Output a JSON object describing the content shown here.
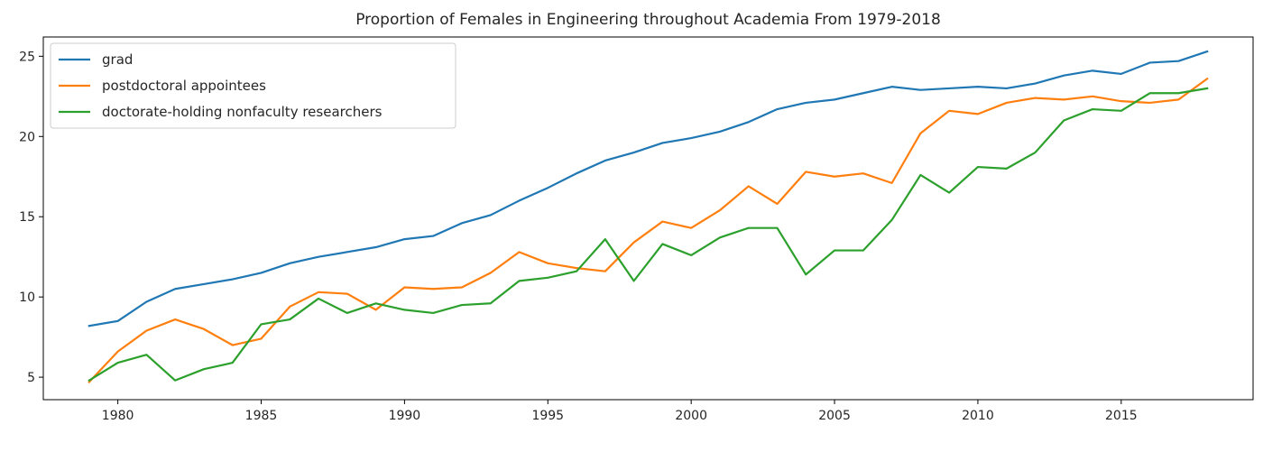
{
  "chart_data": {
    "type": "line",
    "title": "Proportion of Females in Engineering throughout Academia From 1979-2018",
    "xlabel": "",
    "ylabel": "",
    "xlim": [
      1977.4,
      2019.6
    ],
    "ylim": [
      3.6,
      26.2
    ],
    "xticks": [
      1980,
      1985,
      1990,
      1995,
      2000,
      2005,
      2010,
      2015
    ],
    "yticks": [
      5,
      10,
      15,
      20,
      25
    ],
    "grid": false,
    "legend_position": "top-left",
    "x": [
      1979,
      1980,
      1981,
      1982,
      1983,
      1984,
      1985,
      1986,
      1987,
      1988,
      1989,
      1990,
      1991,
      1992,
      1993,
      1994,
      1995,
      1996,
      1997,
      1998,
      1999,
      2000,
      2001,
      2002,
      2003,
      2004,
      2005,
      2006,
      2007,
      2008,
      2009,
      2010,
      2011,
      2012,
      2013,
      2014,
      2015,
      2016,
      2017,
      2018
    ],
    "series": [
      {
        "name": "grad",
        "color": "#1f77b4",
        "values": [
          8.2,
          8.5,
          9.7,
          10.5,
          10.8,
          11.1,
          11.5,
          12.1,
          12.5,
          12.8,
          13.1,
          13.6,
          13.8,
          14.6,
          15.1,
          16.0,
          16.8,
          17.7,
          18.5,
          19.0,
          19.6,
          19.9,
          20.3,
          20.9,
          21.7,
          22.1,
          22.3,
          22.7,
          23.1,
          22.9,
          23.0,
          23.1,
          23.0,
          23.3,
          23.8,
          24.1,
          23.9,
          24.6,
          24.7,
          25.3
        ]
      },
      {
        "name": "postdoctoral appointees",
        "color": "#ff7f0e",
        "values": [
          4.7,
          6.6,
          7.9,
          8.6,
          8.0,
          7.0,
          7.4,
          9.4,
          10.3,
          10.2,
          9.2,
          10.6,
          10.5,
          10.6,
          11.5,
          12.8,
          12.1,
          11.8,
          11.6,
          13.4,
          14.7,
          14.3,
          15.4,
          16.9,
          15.8,
          17.8,
          17.5,
          17.7,
          17.1,
          20.2,
          21.6,
          21.4,
          22.1,
          22.4,
          22.3,
          22.5,
          22.2,
          22.1,
          22.3,
          23.6
        ]
      },
      {
        "name": "doctorate-holding nonfaculty researchers",
        "color": "#2ca02c",
        "values": [
          4.8,
          5.9,
          6.4,
          4.8,
          5.5,
          5.9,
          8.3,
          8.6,
          9.9,
          9.0,
          9.6,
          9.2,
          9.0,
          9.5,
          9.6,
          11.0,
          11.2,
          11.6,
          13.6,
          11.0,
          13.3,
          12.6,
          13.7,
          14.3,
          14.3,
          11.4,
          12.9,
          12.9,
          14.8,
          17.6,
          16.5,
          18.1,
          18.0,
          19.0,
          21.0,
          21.7,
          21.6,
          22.7,
          22.7,
          23.0
        ]
      }
    ]
  }
}
